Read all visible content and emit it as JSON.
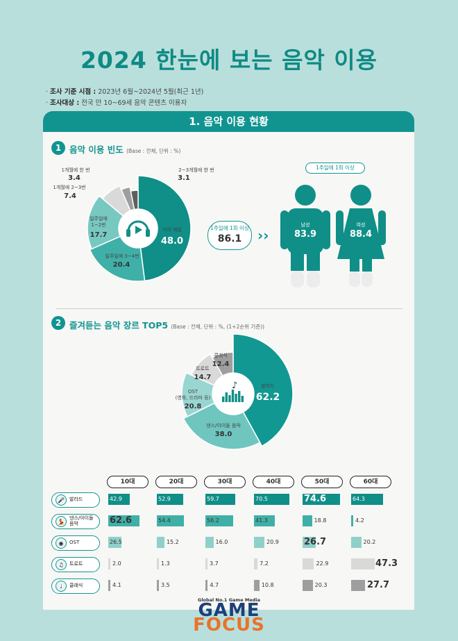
{
  "title": "2024 한눈에 보는 음악 이용",
  "info": [
    {
      "k": "조사 기준 시점 :",
      "v": " 2023년 6월~2024년 5월(최근 1년)"
    },
    {
      "k": "조사대상 :",
      "v": " 전국 만 10~69세 음악 콘텐츠 이용자"
    }
  ],
  "section_title": "1. 음악 이용 현황",
  "s1": {
    "num": "1",
    "title": "음악 이용 빈도",
    "base": "(Base : 전체, 단위 : %)"
  },
  "s2": {
    "num": "2",
    "title": "즐겨듣는 음악 장르 TOP5",
    "base": "(Base : 전체, 단위 : %, (1+2순위 기준))"
  },
  "once_label": "1주일에 1회 이상",
  "colors": {
    "teal_dark": "#0f8f88",
    "teal_mid": "#3fb0a8",
    "teal_light": "#78c8c2",
    "gray_light": "#d9d9d9",
    "gray_mid": "#9e9e9e",
    "gray_dark": "#5e5e5e"
  },
  "chart_data": [
    {
      "type": "pie",
      "title": "음악 이용 빈도",
      "slices": [
        {
          "label": "거의 매일",
          "value": 48.0
        },
        {
          "label": "일주일에 3~4번",
          "value": 20.4
        },
        {
          "label": "일주일에 1~2번",
          "value": 17.7
        },
        {
          "label": "1개월에 2~3번",
          "value": 7.4
        },
        {
          "label": "1개월에 한 번",
          "value": 3.4
        },
        {
          "label": "2~3개월에 한 번",
          "value": 3.1
        }
      ],
      "summary": {
        "label": "1주일에 1회 이상",
        "value": "86.1"
      },
      "gender": [
        {
          "label": "남성",
          "value": "83.9"
        },
        {
          "label": "여성",
          "value": "88.4"
        }
      ]
    },
    {
      "type": "pie",
      "title": "즐겨듣는 음악 장르 TOP5",
      "slices": [
        {
          "label": "발라드",
          "value": 62.2
        },
        {
          "label": "댄스/아이돌 음악",
          "value": 38.0
        },
        {
          "label": "OST (영화, 드라마 등)",
          "value": 20.8
        },
        {
          "label": "트로트",
          "value": 14.7
        },
        {
          "label": "클래식",
          "value": 12.4
        }
      ]
    },
    {
      "type": "table",
      "columns": [
        "10대",
        "20대",
        "30대",
        "40대",
        "50대",
        "60대"
      ],
      "rows": [
        {
          "label": "발라드",
          "values": [
            42.9,
            52.9,
            59.7,
            70.5,
            74.6,
            64.3
          ],
          "color": "#0f8f88"
        },
        {
          "label": "댄스/아이돌 음악",
          "values": [
            62.6,
            54.4,
            56.2,
            41.3,
            18.8,
            4.2
          ],
          "color": "#3fb0a8"
        },
        {
          "label": "OST",
          "values": [
            26.5,
            15.2,
            16.0,
            20.9,
            26.7,
            20.2
          ],
          "color": "#8fd0ca"
        },
        {
          "label": "트로트",
          "values": [
            2.0,
            1.3,
            3.7,
            7.2,
            22.9,
            47.3
          ],
          "color": "#d9d9d9"
        },
        {
          "label": "클래식",
          "values": [
            4.1,
            3.5,
            4.7,
            10.8,
            20.3,
            27.7
          ],
          "color": "#9e9e9e"
        }
      ]
    }
  ],
  "labels1": {
    "s0": "거의 매일",
    "v0": "48.0",
    "s1": "일주일에 3~4번",
    "v1": "20.4",
    "s2": "일주일에 1~2번",
    "v2": "17.7",
    "s3": "1개월에 2~3번",
    "v3": "7.4",
    "s4": "1개월에 한 번",
    "v4": "3.4",
    "s5": "2~3개월에 한 번",
    "v5": "3.1",
    "sum": "86.1"
  },
  "gender": {
    "male": "남성",
    "male_v": "83.9",
    "female": "여성",
    "female_v": "88.4"
  },
  "labels2": {
    "s0": "발라드",
    "v0": "62.2",
    "s1": "댄스/아이돌 음악",
    "v1": "38.0",
    "s2": "OST\n(영화, 드라마 등)",
    "v2": "20.8",
    "s3": "트로트",
    "v3": "14.7",
    "s4": "클래식",
    "v4": "12.4"
  },
  "rowlabels": [
    "발라드",
    "댄스/아이돌\n음악",
    "OST",
    "트로트",
    "클래식"
  ],
  "logo": {
    "tag": "Global No.1 Game Media",
    "game": "GAME",
    "focus": "FOCUS"
  }
}
